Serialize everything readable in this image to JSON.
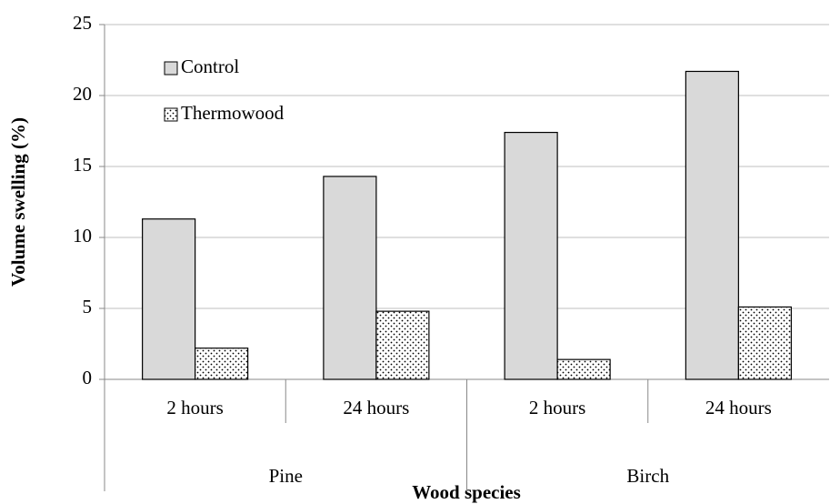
{
  "chart_data": {
    "type": "bar",
    "categories": [
      "2 hours",
      "24 hours",
      "2 hours",
      "24 hours"
    ],
    "category_groups": [
      "Pine",
      "Birch"
    ],
    "series": [
      {
        "name": "Control",
        "color": "#d9d9d9",
        "values": [
          11.3,
          14.3,
          17.4,
          21.7
        ]
      },
      {
        "name": "Thermowood",
        "color": "#ffffff",
        "pattern": "dots",
        "values": [
          2.2,
          4.8,
          1.4,
          5.1
        ]
      }
    ],
    "ylabel": "Volume swelling (%)",
    "xlabel": "Wood species",
    "ylim": [
      0,
      25
    ],
    "yticks": [
      0,
      5,
      10,
      15,
      20,
      25
    ],
    "grid": true,
    "legend": "upper left"
  }
}
